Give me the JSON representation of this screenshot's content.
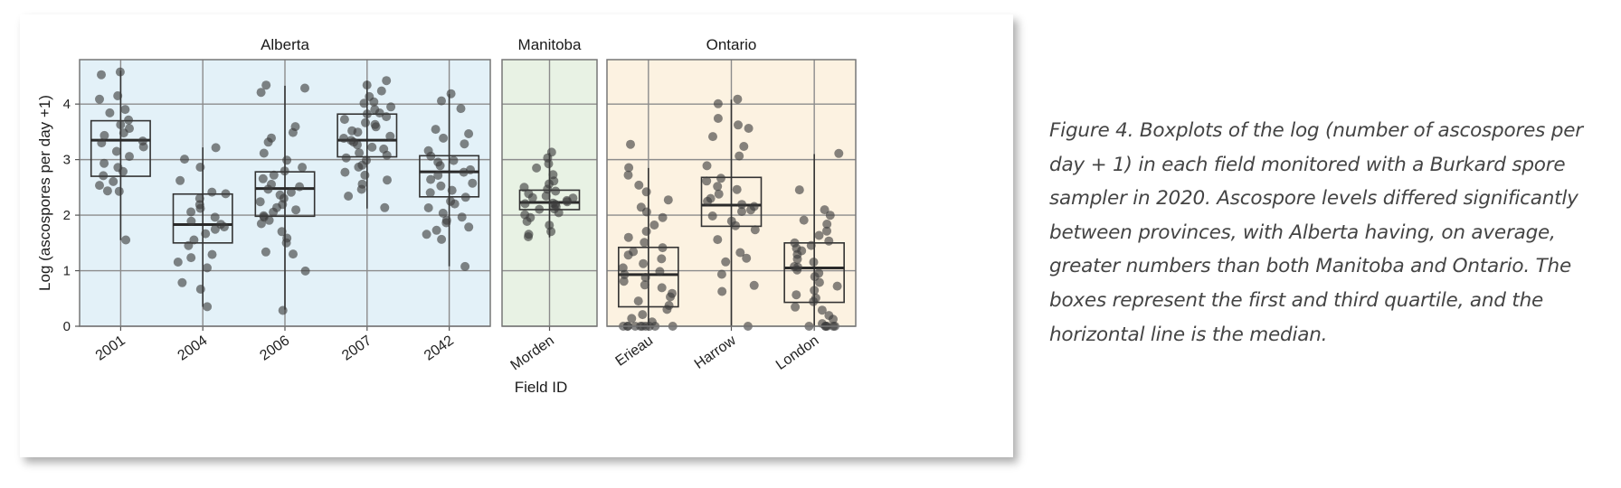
{
  "caption": "Figure 4. Boxplots of the log (number of ascospores per day + 1) in each field monitored with a Burkard spore sampler in 2020. Ascospore levels differed significantly between provinces, with Alberta having, on average, greater numbers than both Manitoba and Ontario. The boxes represent the first and third quartile, and the horizontal line is the median.",
  "colors": {
    "alberta_bg": "#e3f1f8",
    "manitoba_bg": "#e8f2e4",
    "ontario_bg": "#fcf2e1",
    "grid": "#8c8c8c",
    "point": "#3c3c3c",
    "box": "#333333"
  },
  "chart_data": {
    "type": "boxplot",
    "xlabel": "Field ID",
    "ylabel": "Log  (ascospores per day +1)",
    "ylim": [
      0,
      4.8
    ],
    "yticks": [
      "0",
      "1",
      "2",
      "3",
      "4"
    ],
    "grid": true,
    "panels": [
      {
        "name": "Alberta",
        "fields": [
          {
            "id": "2001",
            "q1": 2.7,
            "median": 3.35,
            "q3": 3.7,
            "whisker_low": 1.55,
            "whisker_high": 4.6,
            "points": [
              4.58,
              4.52,
              4.15,
              4.1,
              3.9,
              3.85,
              3.7,
              3.62,
              3.55,
              3.48,
              3.42,
              3.35,
              3.3,
              3.22,
              3.15,
              3.05,
              2.95,
              2.85,
              2.78,
              2.72,
              2.6,
              2.55,
              2.45,
              2.42,
              1.55
            ]
          },
          {
            "id": "2004",
            "q1": 1.5,
            "median": 1.83,
            "q3": 2.38,
            "whisker_low": 0.35,
            "whisker_high": 3.22,
            "points": [
              3.22,
              3.0,
              2.85,
              2.62,
              2.42,
              2.38,
              2.3,
              2.2,
              2.12,
              2.05,
              1.95,
              1.9,
              1.85,
              1.8,
              1.75,
              1.65,
              1.55,
              1.45,
              1.3,
              1.25,
              1.15,
              1.05,
              0.8,
              0.68,
              0.35
            ]
          },
          {
            "id": "2006",
            "q1": 1.98,
            "median": 2.48,
            "q3": 2.78,
            "whisker_low": 0.3,
            "whisker_high": 4.33,
            "points": [
              4.35,
              4.28,
              4.2,
              3.6,
              3.5,
              3.4,
              3.3,
              3.1,
              3.0,
              2.85,
              2.78,
              2.72,
              2.65,
              2.55,
              2.5,
              2.45,
              2.4,
              2.35,
              2.3,
              2.25,
              2.2,
              2.15,
              2.1,
              2.05,
              2.0,
              1.95,
              1.9,
              1.85,
              1.7,
              1.6,
              1.5,
              1.35,
              1.3,
              1.0,
              0.3
            ]
          },
          {
            "id": "2007",
            "q1": 3.05,
            "median": 3.35,
            "q3": 3.82,
            "whisker_low": 2.12,
            "whisker_high": 4.42,
            "points": [
              4.42,
              4.35,
              4.25,
              4.15,
              4.05,
              4.0,
              3.95,
              3.9,
              3.85,
              3.82,
              3.78,
              3.72,
              3.68,
              3.62,
              3.58,
              3.52,
              3.48,
              3.42,
              3.38,
              3.35,
              3.32,
              3.28,
              3.22,
              3.18,
              3.12,
              3.08,
              3.02,
              2.98,
              2.9,
              2.85,
              2.78,
              2.72,
              2.62,
              2.55,
              2.45,
              2.35,
              2.12
            ]
          },
          {
            "id": "2042",
            "q1": 2.33,
            "median": 2.78,
            "q3": 3.07,
            "whisker_low": 1.08,
            "whisker_high": 4.18,
            "points": [
              4.18,
              4.05,
              3.92,
              3.55,
              3.48,
              3.4,
              3.28,
              3.15,
              3.07,
              3.0,
              2.95,
              2.88,
              2.82,
              2.78,
              2.72,
              2.65,
              2.58,
              2.52,
              2.45,
              2.4,
              2.33,
              2.25,
              2.2,
              2.12,
              2.05,
              1.98,
              1.92,
              1.85,
              1.78,
              1.72,
              1.65,
              1.58,
              1.08
            ]
          }
        ]
      },
      {
        "name": "Manitoba",
        "fields": [
          {
            "id": "Morden",
            "q1": 2.1,
            "median": 2.23,
            "q3": 2.45,
            "whisker_low": 1.6,
            "whisker_high": 3.12,
            "points": [
              3.12,
              3.02,
              2.92,
              2.85,
              2.72,
              2.62,
              2.55,
              2.5,
              2.45,
              2.42,
              2.38,
              2.35,
              2.32,
              2.3,
              2.28,
              2.25,
              2.23,
              2.2,
              2.18,
              2.15,
              2.12,
              2.1,
              2.05,
              2.0,
              1.95,
              1.88,
              1.82,
              1.72,
              1.65,
              1.6
            ]
          }
        ]
      },
      {
        "name": "Ontario",
        "fields": [
          {
            "id": "Erieau",
            "q1": 0.35,
            "median": 0.93,
            "q3": 1.42,
            "whisker_low": 0.0,
            "whisker_high": 2.85,
            "points": [
              3.27,
              2.85,
              2.72,
              2.55,
              2.42,
              2.28,
              2.15,
              2.05,
              1.95,
              1.82,
              1.72,
              1.6,
              1.5,
              1.42,
              1.35,
              1.28,
              1.2,
              1.12,
              1.05,
              0.98,
              0.93,
              0.88,
              0.82,
              0.75,
              0.68,
              0.6,
              0.52,
              0.45,
              0.38,
              0.3,
              0.22,
              0.15,
              0.08,
              0.0,
              0.0,
              0.0,
              0.0,
              0.0,
              0.0,
              0.0,
              0.0,
              0.0,
              0.0
            ]
          },
          {
            "id": "Harrow",
            "q1": 1.8,
            "median": 2.18,
            "q3": 2.68,
            "whisker_low": 0.0,
            "whisker_high": 4.08,
            "points": [
              4.08,
              4.02,
              3.75,
              3.62,
              3.55,
              3.4,
              3.25,
              3.05,
              2.88,
              2.68,
              2.6,
              2.52,
              2.45,
              2.38,
              2.3,
              2.25,
              2.2,
              2.15,
              2.1,
              2.05,
              1.98,
              1.9,
              1.82,
              1.75,
              1.55,
              1.32,
              1.22,
              1.15,
              0.95,
              0.72,
              0.62,
              0.0
            ]
          },
          {
            "id": "London",
            "q1": 0.43,
            "median": 1.05,
            "q3": 1.5,
            "whisker_low": 0.0,
            "whisker_high": 3.1,
            "points": [
              3.12,
              2.45,
              2.1,
              2.0,
              1.92,
              1.85,
              1.72,
              1.62,
              1.55,
              1.5,
              1.45,
              1.4,
              1.35,
              1.28,
              1.2,
              1.15,
              1.08,
              1.05,
              1.0,
              0.95,
              0.88,
              0.8,
              0.72,
              0.65,
              0.58,
              0.5,
              0.43,
              0.35,
              0.28,
              0.2,
              0.12,
              0.05,
              0.0,
              0.0,
              0.0,
              0.0,
              0.0,
              0.0
            ]
          }
        ]
      }
    ]
  }
}
